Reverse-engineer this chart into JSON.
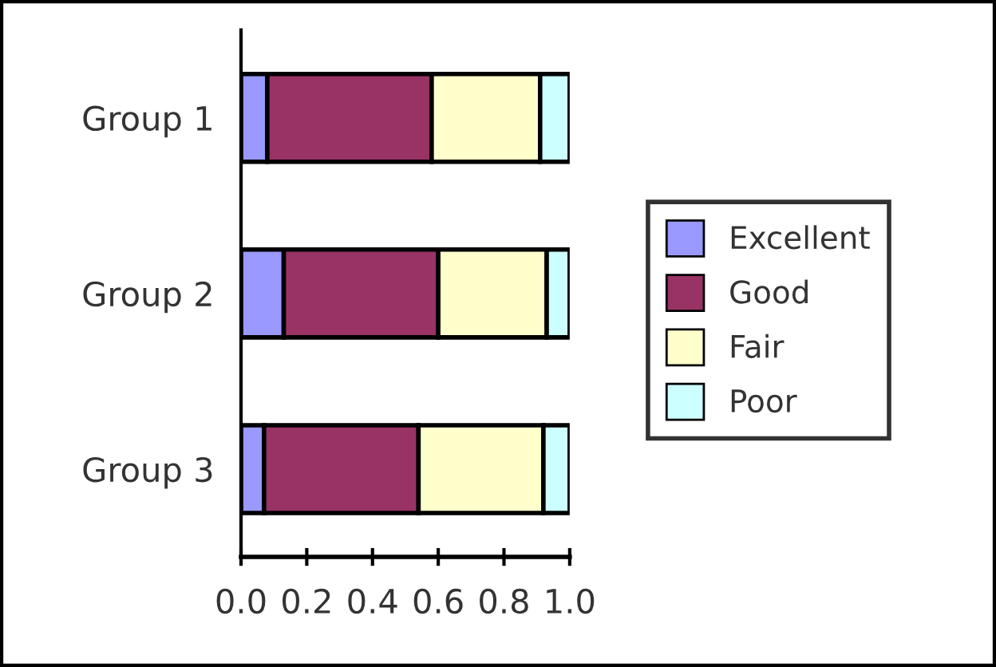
{
  "chart_data": {
    "type": "bar",
    "orientation": "horizontal",
    "stacked": true,
    "categories": [
      "Group 1",
      "Group 2",
      "Group 3"
    ],
    "series": [
      {
        "name": "Excellent",
        "color": "#9999ff",
        "values": [
          0.08,
          0.13,
          0.07
        ]
      },
      {
        "name": "Good",
        "color": "#993366",
        "values": [
          0.5,
          0.47,
          0.47
        ]
      },
      {
        "name": "Fair",
        "color": "#ffffcc",
        "values": [
          0.33,
          0.33,
          0.38
        ]
      },
      {
        "name": "Poor",
        "color": "#ccffff",
        "values": [
          0.09,
          0.07,
          0.08
        ]
      }
    ],
    "xlim": [
      0,
      1.0
    ],
    "xticks": [
      {
        "value": 0,
        "label": "0.0"
      },
      0.2,
      0.4,
      0.6,
      0.8,
      {
        "value": 1.0,
        "label": "1.0"
      }
    ],
    "grid": false,
    "legend": "right"
  }
}
